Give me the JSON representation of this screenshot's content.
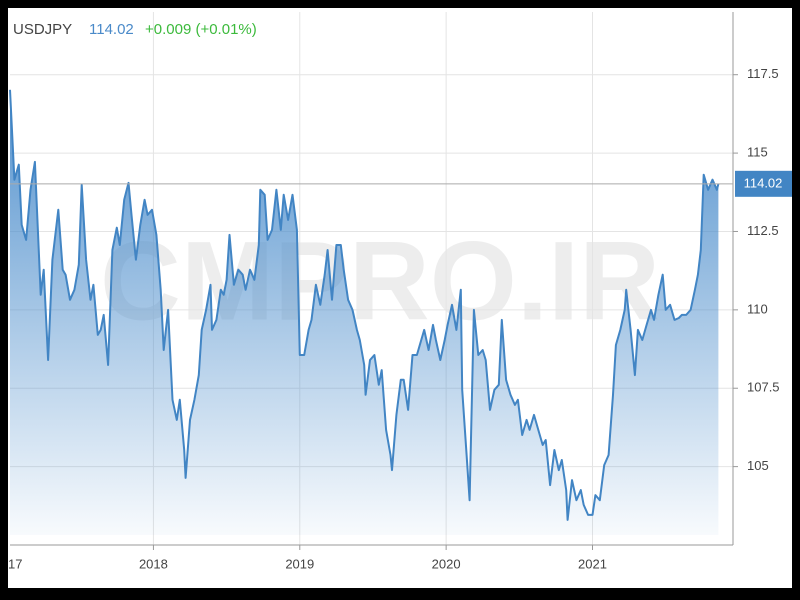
{
  "chart_data": {
    "type": "area",
    "symbol": "USDJPY",
    "price": 114.02,
    "change": "+0.009 (+0.01%)",
    "watermark": "CMPRO.IR",
    "xlim": [
      2017.02,
      2021.96
    ],
    "xticks": [
      {
        "value": 2017,
        "label": "17"
      },
      2018,
      2019,
      2020,
      2021
    ],
    "ylim": [
      102.5,
      119.5
    ],
    "yticks": [
      105,
      107.5,
      110,
      112.5,
      115,
      117.5
    ],
    "grid": true,
    "series": [
      {
        "name": "USDJPY",
        "color": "#4285c4",
        "x": [
          2017.02,
          2017.05,
          2017.08,
          2017.1,
          2017.13,
          2017.16,
          2017.19,
          2017.23,
          2017.25,
          2017.28,
          2017.31,
          2017.35,
          2017.38,
          2017.4,
          2017.43,
          2017.46,
          2017.49,
          2017.51,
          2017.54,
          2017.57,
          2017.59,
          2017.62,
          2017.64,
          2017.66,
          2017.69,
          2017.72,
          2017.75,
          2017.77,
          2017.8,
          2017.83,
          2017.85,
          2017.88,
          2017.91,
          2017.94,
          2017.96,
          2017.99,
          2018.02,
          2018.05,
          2018.07,
          2018.1,
          2018.13,
          2018.16,
          2018.18,
          2018.21,
          2018.22,
          2018.25,
          2018.28,
          2018.31,
          2018.33,
          2018.36,
          2018.39,
          2018.4,
          2018.43,
          2018.46,
          2018.48,
          2018.5,
          2018.52,
          2018.55,
          2018.58,
          2018.61,
          2018.63,
          2018.66,
          2018.69,
          2018.72,
          2018.73,
          2018.76,
          2018.78,
          2018.81,
          2018.84,
          2018.87,
          2018.89,
          2018.92,
          2018.95,
          2018.98,
          2019.0,
          2019.03,
          2019.06,
          2019.08,
          2019.11,
          2019.14,
          2019.17,
          2019.19,
          2019.22,
          2019.25,
          2019.28,
          2019.3,
          2019.33,
          2019.36,
          2019.39,
          2019.41,
          2019.44,
          2019.45,
          2019.48,
          2019.51,
          2019.54,
          2019.56,
          2019.59,
          2019.62,
          2019.63,
          2019.66,
          2019.69,
          2019.71,
          2019.74,
          2019.77,
          2019.8,
          2019.82,
          2019.85,
          2019.88,
          2019.91,
          2019.93,
          2019.96,
          2019.99,
          2020.01,
          2020.04,
          2020.07,
          2020.1,
          2020.11,
          2020.14,
          2020.16,
          2020.19,
          2020.22,
          2020.25,
          2020.27,
          2020.3,
          2020.33,
          2020.36,
          2020.38,
          2020.41,
          2020.44,
          2020.47,
          2020.49,
          2020.52,
          2020.55,
          2020.57,
          2020.6,
          2020.63,
          2020.66,
          2020.68,
          2020.71,
          2020.74,
          2020.77,
          2020.79,
          2020.82,
          2020.83,
          2020.86,
          2020.89,
          2020.92,
          2020.94,
          2020.97,
          2021.0,
          2021.02,
          2021.05,
          2021.08,
          2021.11,
          2021.14,
          2021.16,
          2021.19,
          2021.22,
          2021.23,
          2021.26,
          2021.29,
          2021.31,
          2021.34,
          2021.37,
          2021.4,
          2021.42,
          2021.45,
          2021.48,
          2021.5,
          2021.53,
          2021.56,
          2021.59,
          2021.61,
          2021.64,
          2021.67,
          2021.7,
          2021.72,
          2021.74,
          2021.76,
          2021.79,
          2021.82,
          2021.85,
          2021.86
        ],
        "values": [
          117.02,
          114.15,
          114.63,
          112.71,
          112.23,
          113.83,
          114.72,
          110.48,
          111.28,
          108.4,
          111.6,
          113.19,
          111.28,
          111.12,
          110.32,
          110.64,
          111.44,
          113.99,
          111.6,
          110.32,
          110.8,
          109.2,
          109.36,
          109.84,
          108.24,
          111.91,
          112.62,
          112.07,
          113.51,
          114.05,
          113.03,
          111.6,
          112.71,
          113.51,
          113.03,
          113.19,
          112.39,
          110.64,
          108.72,
          110.0,
          107.13,
          106.49,
          107.13,
          105.53,
          104.64,
          106.49,
          107.13,
          107.92,
          109.36,
          110.0,
          110.8,
          109.36,
          109.68,
          110.64,
          110.48,
          110.96,
          112.39,
          110.8,
          111.28,
          111.12,
          110.64,
          111.28,
          110.96,
          112.07,
          113.83,
          113.67,
          112.23,
          112.55,
          113.83,
          112.55,
          113.67,
          112.87,
          113.67,
          112.55,
          108.56,
          108.56,
          109.36,
          109.68,
          110.8,
          110.16,
          111.12,
          111.91,
          110.32,
          112.07,
          112.07,
          111.28,
          110.32,
          110.0,
          109.36,
          109.04,
          108.24,
          107.29,
          108.4,
          108.56,
          107.61,
          108.08,
          106.17,
          105.37,
          104.89,
          106.65,
          107.77,
          107.77,
          106.81,
          108.56,
          108.56,
          108.88,
          109.36,
          108.72,
          109.52,
          109.04,
          108.4,
          109.04,
          109.52,
          110.16,
          109.36,
          110.64,
          107.45,
          105.37,
          103.93,
          110.0,
          108.56,
          108.72,
          108.4,
          106.81,
          107.45,
          107.61,
          109.68,
          107.77,
          107.29,
          106.97,
          107.13,
          106.01,
          106.49,
          106.17,
          106.65,
          106.17,
          105.69,
          105.85,
          104.41,
          105.53,
          104.89,
          105.21,
          104.25,
          103.3,
          104.57,
          103.93,
          104.25,
          103.78,
          103.46,
          103.46,
          104.09,
          103.93,
          105.05,
          105.37,
          107.29,
          108.88,
          109.36,
          110.0,
          110.64,
          109.36,
          107.92,
          109.36,
          109.04,
          109.52,
          110.0,
          109.68,
          110.48,
          111.12,
          110.0,
          110.16,
          109.68,
          109.74,
          109.84,
          109.84,
          110.0,
          110.64,
          111.12,
          111.91,
          114.31,
          113.83,
          114.15,
          113.83,
          114.02
        ]
      }
    ]
  }
}
